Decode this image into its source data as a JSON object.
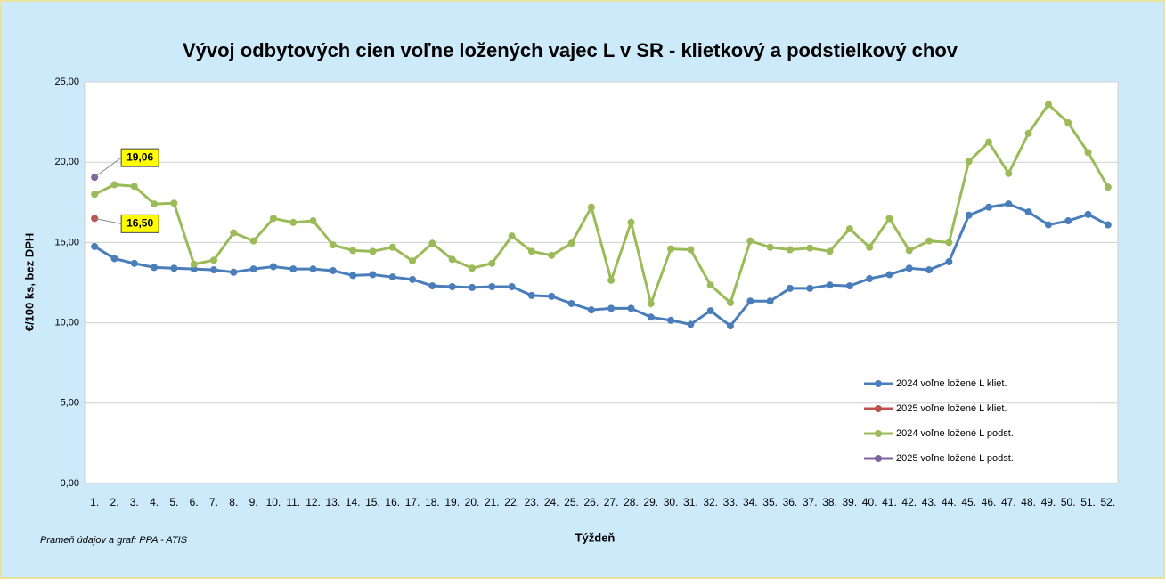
{
  "chart_data": {
    "type": "line",
    "title": "Vývoj odbytových cien voľne ložených vajec L v SR - klietkový a podstielkový chov",
    "y_label": "€/100 ks, bez DPH",
    "x_label": "Týždeň",
    "source": "Prameň údajov a graf: PPA - ATIS",
    "categories": [
      "1.",
      "2.",
      "3.",
      "4.",
      "5.",
      "6.",
      "7.",
      "8.",
      "9.",
      "10.",
      "11.",
      "12.",
      "13.",
      "14.",
      "15.",
      "16.",
      "17.",
      "18.",
      "19.",
      "20.",
      "21.",
      "22.",
      "23.",
      "24.",
      "25.",
      "26.",
      "27.",
      "28.",
      "29.",
      "30.",
      "31.",
      "32.",
      "33.",
      "34.",
      "35.",
      "36.",
      "37.",
      "38.",
      "39.",
      "40.",
      "41.",
      "42.",
      "43.",
      "44.",
      "45.",
      "46.",
      "47.",
      "48.",
      "49.",
      "50.",
      "51.",
      "52."
    ],
    "ylim": [
      0,
      25
    ],
    "yticks": [
      {
        "value": 0,
        "label": "0,00"
      },
      {
        "value": 5,
        "label": "5,00"
      },
      {
        "value": 10,
        "label": "10,00"
      },
      {
        "value": 15,
        "label": "15,00"
      },
      {
        "value": 20,
        "label": "20,00"
      },
      {
        "value": 25,
        "label": "25,00"
      }
    ],
    "grid": true,
    "legend": "right",
    "series": [
      {
        "name": "2024 voľne ložené L kliet.",
        "color": "#4a7ebb",
        "values": [
          14.75,
          14.0,
          13.7,
          13.45,
          13.4,
          13.35,
          13.3,
          13.15,
          13.35,
          13.5,
          13.35,
          13.35,
          13.25,
          12.95,
          13.0,
          12.85,
          12.7,
          12.3,
          12.25,
          12.2,
          12.25,
          12.25,
          11.7,
          11.65,
          11.2,
          10.8,
          10.9,
          10.9,
          10.35,
          10.15,
          9.9,
          10.75,
          9.8,
          11.35,
          11.35,
          12.15,
          12.15,
          12.35,
          12.3,
          12.75,
          13.0,
          13.4,
          13.3,
          13.8,
          16.7,
          17.2,
          17.4,
          16.9,
          16.1,
          16.35,
          16.75,
          16.1
        ]
      },
      {
        "name": "2025 voľne ložené L kliet.",
        "color": "#c0504d",
        "values": [
          16.5,
          null,
          null,
          null,
          null,
          null,
          null,
          null,
          null,
          null,
          null,
          null,
          null,
          null,
          null,
          null,
          null,
          null,
          null,
          null,
          null,
          null,
          null,
          null,
          null,
          null,
          null,
          null,
          null,
          null,
          null,
          null,
          null,
          null,
          null,
          null,
          null,
          null,
          null,
          null,
          null,
          null,
          null,
          null,
          null,
          null,
          null,
          null,
          null,
          null,
          null,
          null
        ],
        "value_labels": [
          "16,50",
          null,
          null,
          null,
          null,
          null,
          null,
          null,
          null,
          null,
          null,
          null,
          null,
          null,
          null,
          null,
          null,
          null,
          null,
          null,
          null,
          null,
          null,
          null,
          null,
          null,
          null,
          null,
          null,
          null,
          null,
          null,
          null,
          null,
          null,
          null,
          null,
          null,
          null,
          null,
          null,
          null,
          null,
          null,
          null,
          null,
          null,
          null,
          null,
          null,
          null,
          null
        ]
      },
      {
        "name": "2024 voľne ložené L podst.",
        "color": "#9bbb59",
        "values": [
          18.0,
          18.6,
          18.5,
          17.4,
          17.45,
          13.65,
          13.9,
          15.6,
          15.1,
          16.5,
          16.25,
          16.35,
          14.85,
          14.5,
          14.45,
          14.7,
          13.85,
          14.95,
          13.95,
          13.4,
          13.7,
          15.4,
          14.45,
          14.2,
          14.95,
          17.2,
          12.65,
          16.25,
          11.2,
          14.6,
          14.55,
          12.35,
          11.25,
          15.1,
          14.7,
          14.55,
          14.65,
          14.45,
          15.85,
          14.7,
          16.5,
          14.5,
          15.1,
          15.0,
          20.05,
          21.25,
          19.3,
          21.8,
          23.6,
          22.45,
          20.6,
          18.45
        ]
      },
      {
        "name": "2025 voľne ložené L podst.",
        "color": "#8064a2",
        "values": [
          19.06,
          null,
          null,
          null,
          null,
          null,
          null,
          null,
          null,
          null,
          null,
          null,
          null,
          null,
          null,
          null,
          null,
          null,
          null,
          null,
          null,
          null,
          null,
          null,
          null,
          null,
          null,
          null,
          null,
          null,
          null,
          null,
          null,
          null,
          null,
          null,
          null,
          null,
          null,
          null,
          null,
          null,
          null,
          null,
          null,
          null,
          null,
          null,
          null,
          null,
          null,
          null
        ],
        "value_labels": [
          "19,06",
          null,
          null,
          null,
          null,
          null,
          null,
          null,
          null,
          null,
          null,
          null,
          null,
          null,
          null,
          null,
          null,
          null,
          null,
          null,
          null,
          null,
          null,
          null,
          null,
          null,
          null,
          null,
          null,
          null,
          null,
          null,
          null,
          null,
          null,
          null,
          null,
          null,
          null,
          null,
          null,
          null,
          null,
          null,
          null,
          null,
          null,
          null,
          null,
          null,
          null,
          null
        ]
      }
    ]
  }
}
